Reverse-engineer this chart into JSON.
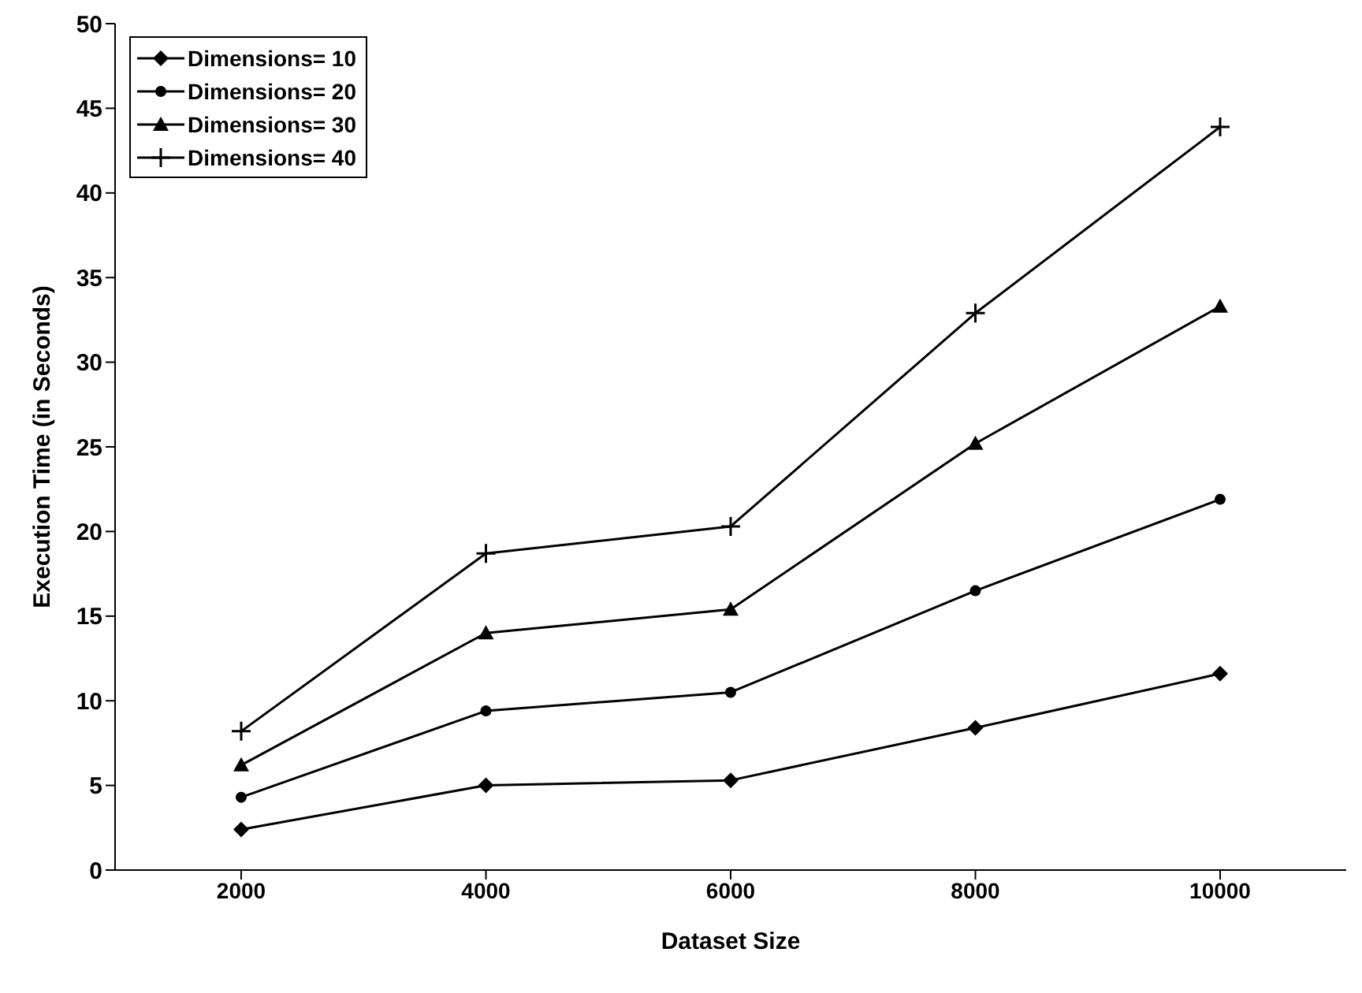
{
  "chart_data": {
    "type": "line",
    "xlabel": "Dataset Size",
    "ylabel": "Execution Time (in Seconds)",
    "categories": [
      "2000",
      "4000",
      "6000",
      "8000",
      "10000"
    ],
    "ylim": [
      0,
      50
    ],
    "yticks": [
      0,
      5,
      10,
      15,
      20,
      25,
      30,
      35,
      40,
      45,
      50
    ],
    "grid": false,
    "legend": "top left",
    "line_style": "solid",
    "series": [
      {
        "name": "Dimensions= 10",
        "color": "#000000",
        "marker": "diamond",
        "values": [
          2.4,
          5.0,
          5.3,
          8.4,
          11.6
        ]
      },
      {
        "name": "Dimensions= 20",
        "color": "#000000",
        "marker": "circle",
        "values": [
          4.3,
          9.4,
          10.5,
          16.5,
          21.9
        ]
      },
      {
        "name": "Dimensions= 30",
        "color": "#000000",
        "marker": "triangle",
        "values": [
          6.2,
          14.0,
          15.4,
          25.2,
          33.3
        ]
      },
      {
        "name": "Dimensions= 40",
        "color": "#000000",
        "marker": "cross",
        "values": [
          8.2,
          18.7,
          20.3,
          32.9,
          43.9
        ]
      }
    ]
  }
}
